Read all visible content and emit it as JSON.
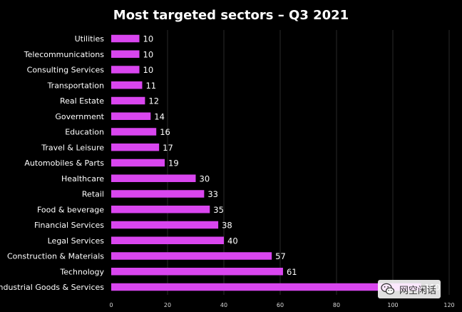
{
  "colors": {
    "background": "#000000",
    "bar": "#d946ef",
    "text": "#ffffff",
    "tick_text": "#d9d9d9",
    "grid": "#2a2a2a"
  },
  "watermark": {
    "text": "网空闲话",
    "icon": "wechat-icon"
  },
  "chart_data": {
    "type": "bar",
    "orientation": "horizontal",
    "title": "Most targeted sectors – Q3 2021",
    "xlabel": "",
    "ylabel": "",
    "xlim": [
      0,
      120
    ],
    "x_ticks": [
      0,
      20,
      40,
      60,
      80,
      100,
      120
    ],
    "grid": "vertical",
    "data_labels": true,
    "categories": [
      "Utilities",
      "Telecommunications",
      "Consulting Services",
      "Transportation",
      "Real Estate",
      "Government",
      "Education",
      "Travel & Leisure",
      "Automobiles & Parts",
      "Healthcare",
      "Retail",
      "Food & beverage",
      "Financial Services",
      "Legal Services",
      "Construction & Materials",
      "Technology",
      "Industrial Goods & Services"
    ],
    "values": [
      10,
      10,
      10,
      11,
      12,
      14,
      16,
      17,
      19,
      30,
      33,
      35,
      38,
      40,
      57,
      61,
      110
    ]
  }
}
